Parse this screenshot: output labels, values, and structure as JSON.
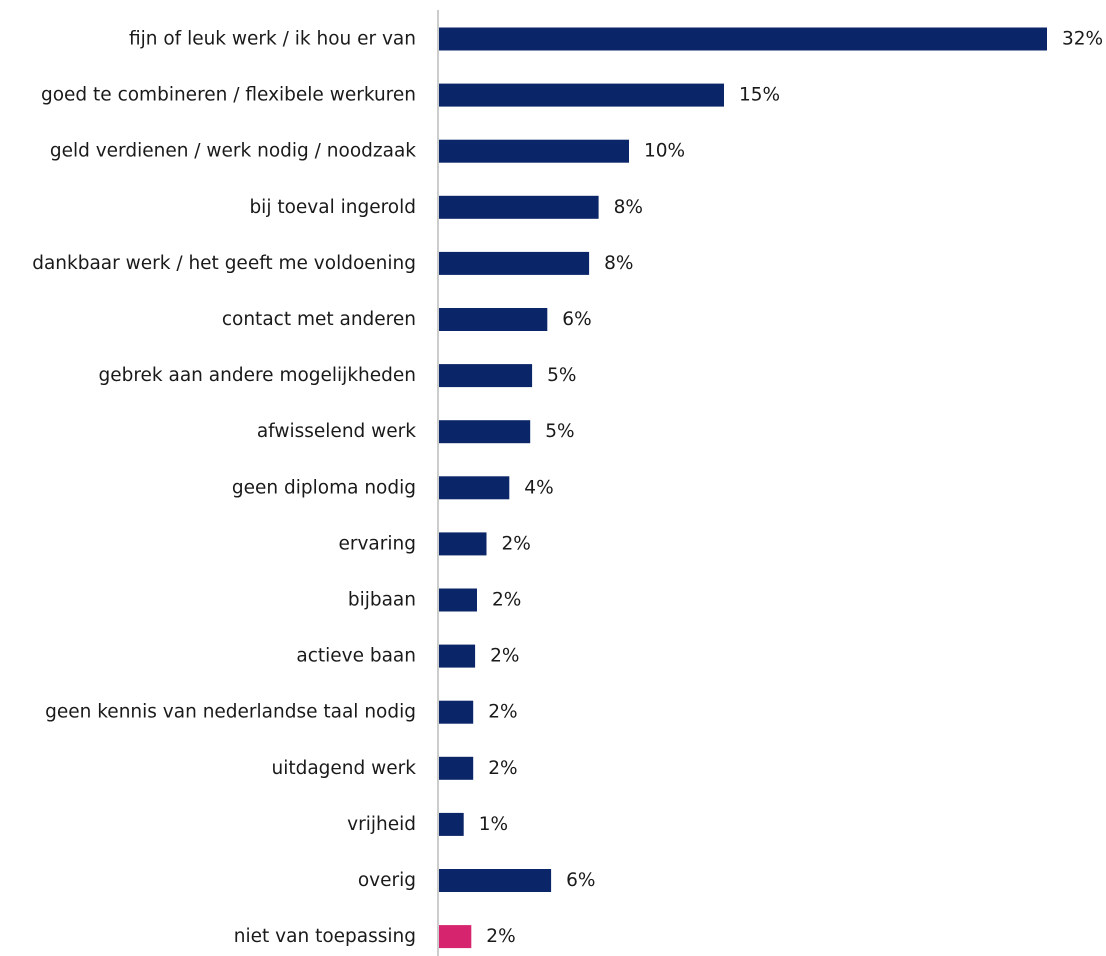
{
  "chart_data": {
    "type": "bar",
    "orientation": "horizontal",
    "categories": [
      "fijn of leuk werk / ik hou er van",
      "goed te combineren / flexibele werkuren",
      "geld verdienen / werk nodig / noodzaak",
      "bij toeval ingerold",
      "dankbaar werk / het geeft me voldoening",
      "contact met anderen",
      "gebrek aan andere mogelijkheden",
      "afwisselend werk",
      "geen diploma nodig",
      "ervaring",
      "bijbaan",
      "actieve baan",
      "geen kennis van nederlandse taal nodig",
      "uitdagend werk",
      "vrijheid",
      "overig",
      "niet van toepassing"
    ],
    "values": [
      32,
      15,
      10,
      8.4,
      7.9,
      5.7,
      4.9,
      4.8,
      3.7,
      2.5,
      2.0,
      1.9,
      1.8,
      1.8,
      1.3,
      5.9,
      1.7
    ],
    "value_labels": [
      "32%",
      "15%",
      "10%",
      "8%",
      "8%",
      "6%",
      "5%",
      "5%",
      "4%",
      "2%",
      "2%",
      "2%",
      "2%",
      "2%",
      "1%",
      "6%",
      "2%"
    ],
    "bar_colors": [
      "#0b2569",
      "#0b2569",
      "#0b2569",
      "#0b2569",
      "#0b2569",
      "#0b2569",
      "#0b2569",
      "#0b2569",
      "#0b2569",
      "#0b2569",
      "#0b2569",
      "#0b2569",
      "#0b2569",
      "#0b2569",
      "#0b2569",
      "#0b2569",
      "#d6246e"
    ],
    "xlim": [
      0,
      32
    ],
    "grid": false,
    "axis_color": "#9a9a9a"
  }
}
